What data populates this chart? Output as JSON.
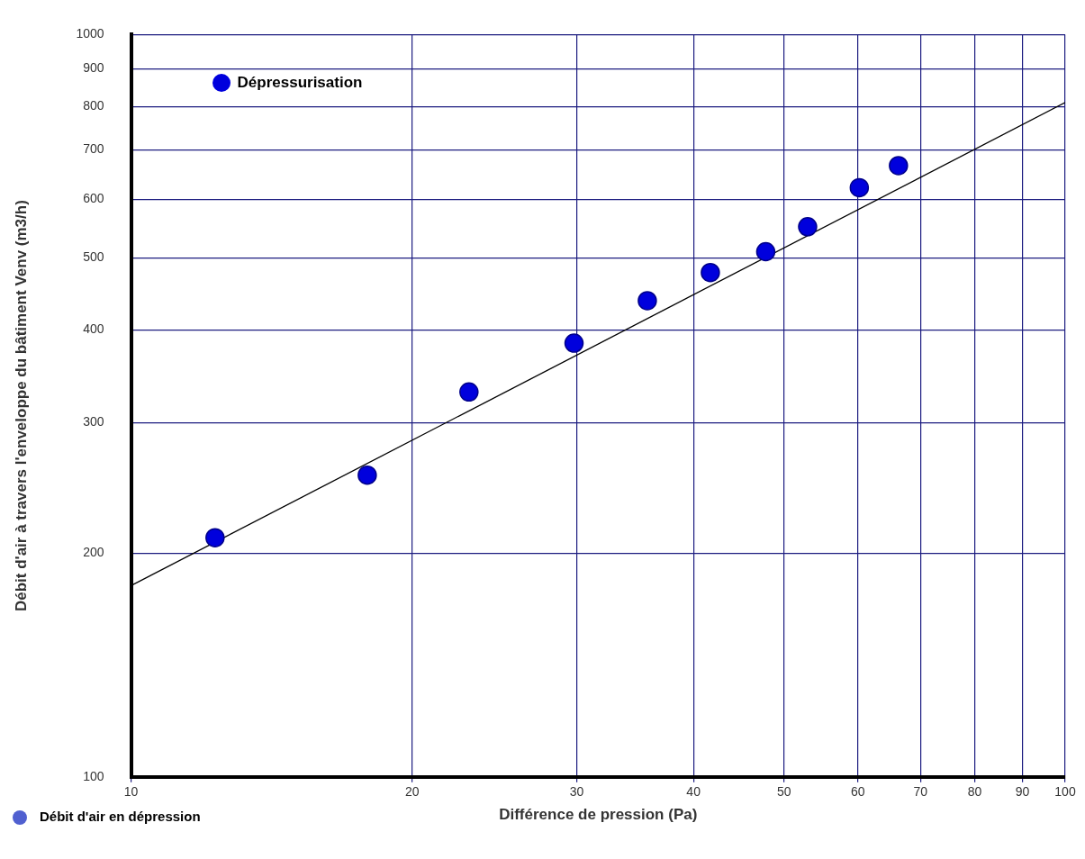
{
  "chart_data": {
    "type": "scatter",
    "xlabel": "Différence de pression (Pa)",
    "ylabel": "Débit d'air à travers l'enveloppe du bâtiment Venv (m3/h)",
    "log": "xy",
    "grid": true,
    "legend": "top left",
    "marker": "circle",
    "xlim": [
      10,
      100
    ],
    "xticks": [
      10,
      20,
      30,
      40,
      50,
      60,
      70,
      80,
      90,
      100
    ],
    "ylim": [
      100,
      1000
    ],
    "yticks": [
      100,
      200,
      300,
      400,
      500,
      600,
      700,
      800,
      900,
      1000
    ],
    "annotations": [
      "Débit d'air en dépression"
    ],
    "series": [
      {
        "name": "Dépressurisation",
        "color": "#0000dd",
        "x": [
          12.3,
          17.9,
          23.0,
          29.8,
          35.7,
          41.7,
          47.8,
          53.0,
          60.2,
          66.3
        ],
        "values": [
          210,
          255,
          330,
          384,
          438,
          478,
          510,
          551,
          622,
          666
        ]
      },
      {
        "type": "line",
        "color": "#000000",
        "marker": "none",
        "x": [
          10,
          100
        ],
        "values": [
          181,
          810
        ]
      }
    ]
  }
}
